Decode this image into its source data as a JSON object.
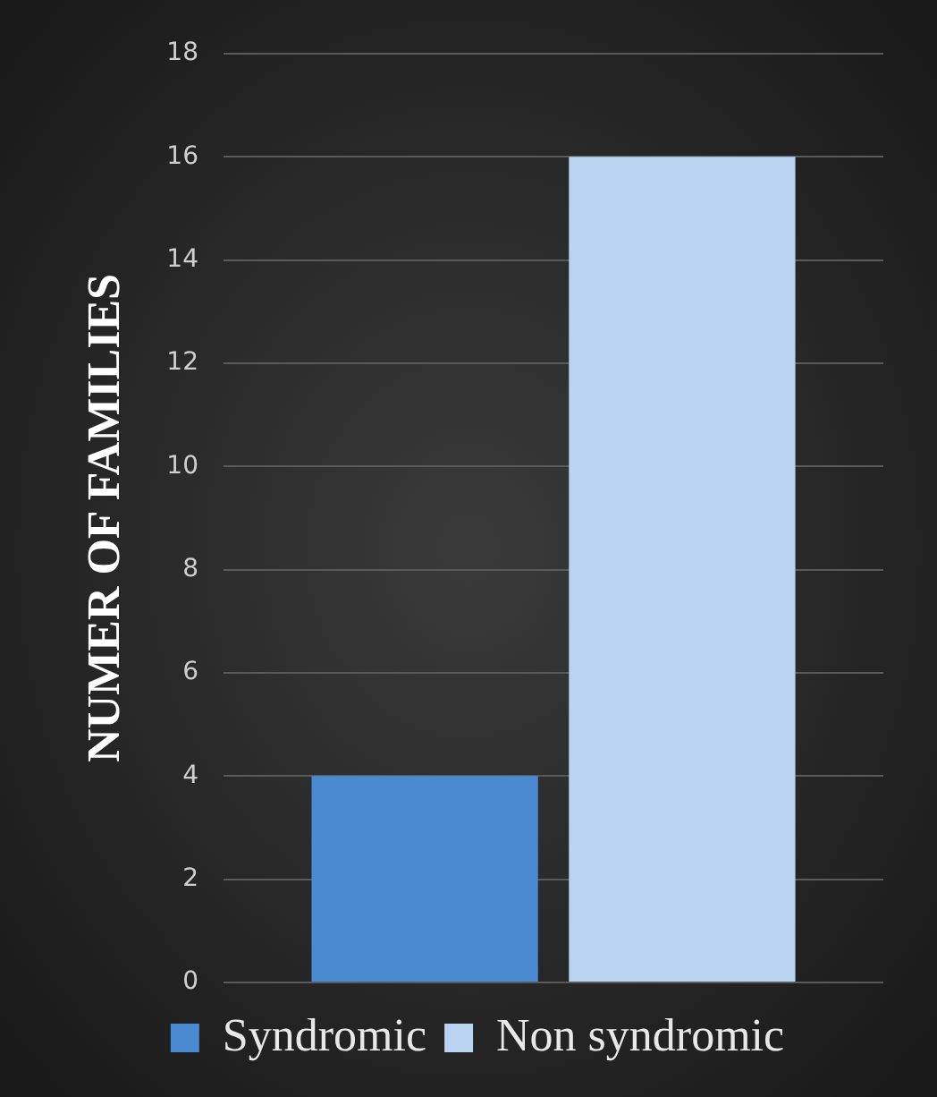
{
  "chart_data": {
    "type": "bar",
    "ylabel": "NUMER OF FAMILIES",
    "categories": [
      null
    ],
    "series": [
      {
        "name": "Syndromic",
        "color": "#4a8ad0",
        "values": [
          4
        ]
      },
      {
        "name": "Non syndromic",
        "color": "#b9d3f0",
        "values": [
          16
        ]
      }
    ],
    "ylim": [
      0,
      18
    ],
    "yticks": [
      0,
      2,
      4,
      6,
      8,
      10,
      12,
      14,
      16,
      18
    ],
    "grid": "y",
    "legend": "bottom"
  }
}
